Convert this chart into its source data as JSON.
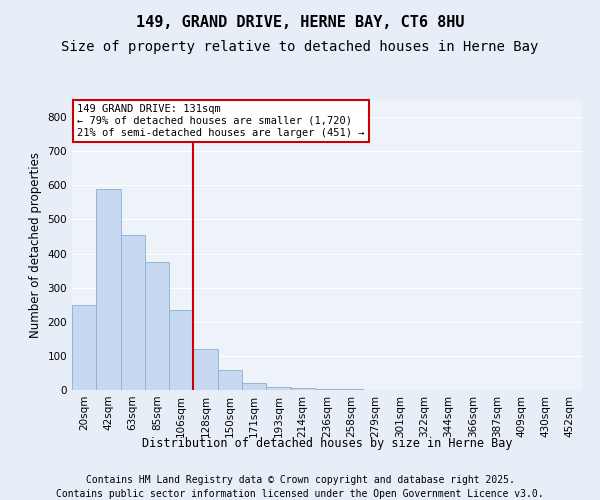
{
  "title_line1": "149, GRAND DRIVE, HERNE BAY, CT6 8HU",
  "title_line2": "Size of property relative to detached houses in Herne Bay",
  "xlabel": "Distribution of detached houses by size in Herne Bay",
  "ylabel": "Number of detached properties",
  "bin_labels": [
    "20sqm",
    "42sqm",
    "63sqm",
    "85sqm",
    "106sqm",
    "128sqm",
    "150sqm",
    "171sqm",
    "193sqm",
    "214sqm",
    "236sqm",
    "258sqm",
    "279sqm",
    "301sqm",
    "322sqm",
    "344sqm",
    "366sqm",
    "387sqm",
    "409sqm",
    "430sqm",
    "452sqm"
  ],
  "bar_heights": [
    250,
    590,
    455,
    375,
    235,
    120,
    60,
    20,
    10,
    5,
    3,
    2,
    1,
    1,
    1,
    1,
    0,
    0,
    0,
    0,
    0
  ],
  "bar_color": "#c6d9f1",
  "bar_edge_color": "#8bafd4",
  "vline_pos": 4.5,
  "vline_color": "#cc0000",
  "annotation_title": "149 GRAND DRIVE: 131sqm",
  "annotation_line1": "← 79% of detached houses are smaller (1,720)",
  "annotation_line2": "21% of semi-detached houses are larger (451) →",
  "annotation_box_color": "#cc0000",
  "annotation_fill": "#ffffff",
  "ylim": [
    0,
    850
  ],
  "yticks": [
    0,
    100,
    200,
    300,
    400,
    500,
    600,
    700,
    800
  ],
  "background_color": "#e8eef7",
  "plot_bg_color": "#eef2f9",
  "grid_color": "#ffffff",
  "footer_line1": "Contains HM Land Registry data © Crown copyright and database right 2025.",
  "footer_line2": "Contains public sector information licensed under the Open Government Licence v3.0.",
  "title_fontsize": 11,
  "subtitle_fontsize": 10,
  "label_fontsize": 8.5,
  "tick_fontsize": 7.5,
  "footer_fontsize": 7
}
